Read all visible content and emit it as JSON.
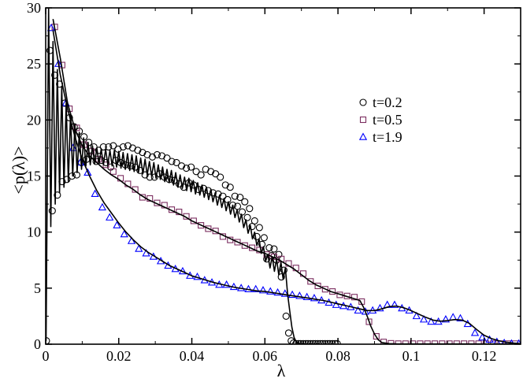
{
  "chart_data": {
    "type": "scatter",
    "xlabel": "λ",
    "ylabel": "<p(λ)>",
    "xlim": [
      0,
      0.13
    ],
    "ylim": [
      0,
      30
    ],
    "x_ticks": [
      0,
      0.02,
      0.04,
      0.06,
      0.08,
      0.1,
      0.12
    ],
    "x_tick_labels": [
      "0",
      "0.02",
      "0.04",
      "0.06",
      "0.08",
      "0.1",
      "0.12"
    ],
    "y_ticks": [
      0,
      5,
      10,
      15,
      20,
      25,
      30
    ],
    "y_tick_labels": [
      "0",
      "5",
      "10",
      "15",
      "20",
      "25",
      "30"
    ],
    "grid": false,
    "legend_position": "top-right",
    "series": [
      {
        "name": "t=0.2",
        "marker": "circle",
        "color": "#000000",
        "x": [
          0.0002,
          0.0012,
          0.0018,
          0.0025,
          0.0032,
          0.0038,
          0.0045,
          0.0052,
          0.0058,
          0.0065,
          0.0072,
          0.0078,
          0.0085,
          0.0092,
          0.0098,
          0.0105,
          0.0112,
          0.0118,
          0.0125,
          0.0132,
          0.0138,
          0.0145,
          0.0152,
          0.0158,
          0.0165,
          0.0172,
          0.0178,
          0.0185,
          0.0192,
          0.0198,
          0.0205,
          0.0212,
          0.0218,
          0.0225,
          0.0232,
          0.0238,
          0.0245,
          0.0252,
          0.0258,
          0.0265,
          0.0272,
          0.0278,
          0.0285,
          0.0292,
          0.0298,
          0.0305,
          0.0312,
          0.0318,
          0.0325,
          0.0332,
          0.0338,
          0.0345,
          0.0352,
          0.0358,
          0.0365,
          0.0372,
          0.0378,
          0.0385,
          0.0392,
          0.0398,
          0.0405,
          0.0412,
          0.0418,
          0.0425,
          0.0432,
          0.0438,
          0.0445,
          0.0452,
          0.0458,
          0.0465,
          0.0472,
          0.0478,
          0.0485,
          0.0492,
          0.0498,
          0.0505,
          0.0512,
          0.0518,
          0.0525,
          0.0532,
          0.0538,
          0.0545,
          0.0552,
          0.0558,
          0.0565,
          0.0572,
          0.0578,
          0.0585,
          0.0592,
          0.0598,
          0.0605,
          0.0612,
          0.0618,
          0.0625,
          0.0632,
          0.0638,
          0.0645,
          0.0652,
          0.0658,
          0.0665,
          0.0672,
          0.0678,
          0.0685,
          0.0692,
          0.0698,
          0.0705,
          0.0712,
          0.0718,
          0.0725,
          0.0732,
          0.0738,
          0.0745,
          0.0752,
          0.0758,
          0.0765,
          0.0772,
          0.0778,
          0.0785,
          0.0792,
          0.0798
        ],
        "y": [
          0.3,
          26.2,
          11.9,
          24.0,
          13.3,
          23.2,
          14.5,
          21.5,
          14.7,
          20.2,
          15.0,
          19.4,
          15.1,
          19.0,
          16.2,
          18.5,
          16.5,
          18.0,
          16.8,
          17.6,
          16.3,
          17.3,
          16.4,
          17.6,
          16.2,
          17.6,
          15.8,
          17.7,
          16.4,
          17.4,
          16.2,
          17.6,
          16.0,
          17.7,
          15.9,
          17.5,
          15.8,
          17.3,
          15.5,
          17.1,
          15.1,
          16.9,
          14.9,
          16.7,
          14.9,
          16.9,
          15.2,
          16.8,
          14.9,
          16.6,
          14.7,
          16.3,
          14.6,
          16.2,
          14.3,
          15.9,
          14.0,
          15.7,
          14.4,
          15.8,
          14.2,
          15.4,
          13.8,
          15.1,
          13.9,
          15.6,
          13.7,
          15.4,
          13.5,
          15.2,
          13.4,
          14.9,
          13.2,
          14.2,
          12.9,
          14.0,
          12.4,
          13.2,
          12.3,
          13.1,
          11.8,
          12.7,
          11.3,
          12.1,
          10.5,
          11.0,
          9.6,
          10.4,
          8.9,
          9.5,
          7.6,
          8.6,
          7.9,
          8.5,
          7.5,
          8.0,
          6.0,
          6.6,
          2.5,
          1.0,
          0.3,
          0.1,
          0.05,
          0.05,
          0.05,
          0.05,
          0.05,
          0.05,
          0.05,
          0.05,
          0.05,
          0.05,
          0.05,
          0.05,
          0.05,
          0.05,
          0.05,
          0.05,
          0.05,
          0.05
        ],
        "fit_x": [
          0.0001,
          0.0008,
          0.0014,
          0.002,
          0.0026,
          0.0032,
          0.0038,
          0.0044,
          0.005,
          0.0056,
          0.0062,
          0.0068,
          0.0074,
          0.008,
          0.0086,
          0.0092,
          0.0098,
          0.0104,
          0.011,
          0.0116,
          0.0122,
          0.0128,
          0.0134,
          0.014,
          0.0146,
          0.0152,
          0.0158,
          0.0164,
          0.017,
          0.0176,
          0.0182,
          0.0188,
          0.0194,
          0.02,
          0.0206,
          0.0212,
          0.0218,
          0.0224,
          0.023,
          0.0236,
          0.0242,
          0.0248,
          0.0254,
          0.026,
          0.0266,
          0.0272,
          0.0278,
          0.0284,
          0.029,
          0.0296,
          0.0302,
          0.0308,
          0.0314,
          0.032,
          0.0326,
          0.0332,
          0.0338,
          0.0344,
          0.035,
          0.0356,
          0.0362,
          0.0368,
          0.0374,
          0.038,
          0.0386,
          0.0392,
          0.0398,
          0.0404,
          0.041,
          0.0416,
          0.0422,
          0.0428,
          0.0434,
          0.044,
          0.0446,
          0.0452,
          0.0458,
          0.0464,
          0.047,
          0.0476,
          0.0482,
          0.0488,
          0.0494,
          0.05,
          0.0506,
          0.0512,
          0.0518,
          0.0524,
          0.053,
          0.0536,
          0.0542,
          0.0548,
          0.0554,
          0.056,
          0.0566,
          0.0572,
          0.0578,
          0.0584,
          0.059,
          0.0596,
          0.0602,
          0.0608,
          0.0614,
          0.062,
          0.0626,
          0.0632,
          0.0638,
          0.0644,
          0.065,
          0.0656,
          0.0662,
          0.0668,
          0.0674,
          0.068,
          0.0686,
          0.0692,
          0.0698,
          0.0704,
          0.071,
          0.0716,
          0.0722,
          0.0728,
          0.0734,
          0.074,
          0.075,
          0.08
        ],
        "fit_y": [
          0.3,
          30.0,
          10.5,
          27.0,
          12.5,
          24.5,
          13.5,
          23.0,
          14.0,
          21.5,
          14.5,
          20.5,
          15.0,
          19.6,
          15.3,
          18.9,
          15.6,
          18.4,
          15.9,
          18.0,
          16.0,
          17.7,
          16.1,
          17.5,
          16.1,
          17.4,
          16.0,
          17.4,
          16.0,
          17.3,
          15.9,
          17.3,
          15.8,
          17.2,
          15.7,
          17.1,
          15.6,
          17.0,
          15.5,
          16.9,
          15.4,
          16.8,
          15.3,
          16.6,
          15.2,
          16.5,
          15.1,
          16.3,
          15.0,
          16.2,
          14.8,
          16.0,
          14.7,
          15.8,
          14.5,
          15.6,
          14.4,
          15.5,
          14.2,
          15.3,
          14.0,
          15.1,
          13.9,
          14.9,
          13.7,
          14.8,
          13.6,
          14.6,
          13.4,
          14.4,
          13.3,
          14.2,
          13.1,
          14.0,
          12.9,
          13.8,
          12.7,
          13.5,
          12.4,
          13.3,
          12.2,
          13.0,
          11.9,
          12.7,
          11.6,
          12.4,
          11.3,
          12.0,
          10.9,
          11.6,
          10.4,
          11.1,
          9.9,
          10.6,
          9.4,
          10.0,
          8.8,
          9.4,
          8.1,
          8.7,
          7.4,
          8.0,
          6.8,
          7.8,
          6.5,
          7.6,
          6.2,
          7.3,
          5.8,
          6.8,
          4.5,
          3.0,
          1.5,
          0.6,
          0.2,
          0.08,
          0.04,
          0.03,
          0.02,
          0.02,
          0.02,
          0.02,
          0.02,
          0.02,
          0.02
        ]
      },
      {
        "name": "t=0.5",
        "marker": "square",
        "color": "#7b2d5f",
        "x": [
          0.0025,
          0.0045,
          0.0065,
          0.0085,
          0.0105,
          0.0125,
          0.0145,
          0.0165,
          0.0185,
          0.0205,
          0.0225,
          0.0245,
          0.0265,
          0.0285,
          0.0305,
          0.0325,
          0.0345,
          0.0365,
          0.0385,
          0.0405,
          0.0425,
          0.0445,
          0.0465,
          0.0485,
          0.0505,
          0.0525,
          0.0545,
          0.0565,
          0.0585,
          0.0605,
          0.0625,
          0.0645,
          0.0665,
          0.0685,
          0.0705,
          0.0725,
          0.0745,
          0.0765,
          0.0785,
          0.0805,
          0.0825,
          0.0845,
          0.0865,
          0.0885,
          0.0905,
          0.0925,
          0.0945,
          0.0965,
          0.0985,
          0.1005,
          0.1025,
          0.1045,
          0.1065,
          0.1085,
          0.1105,
          0.1125,
          0.1145,
          0.1165,
          0.1185,
          0.1205,
          0.1225,
          0.1245,
          0.1265,
          0.1285
        ],
        "y": [
          28.3,
          24.9,
          21.0,
          19.3,
          17.8,
          17.2,
          16.5,
          16.0,
          15.4,
          14.8,
          14.3,
          13.8,
          13.1,
          13.0,
          12.6,
          12.4,
          12.0,
          11.8,
          11.4,
          11.0,
          10.6,
          10.3,
          10.1,
          9.6,
          9.3,
          9.1,
          8.8,
          8.6,
          8.4,
          8.0,
          7.8,
          7.6,
          7.2,
          6.8,
          6.3,
          5.6,
          5.2,
          4.9,
          4.7,
          4.4,
          4.3,
          4.2,
          3.8,
          2.0,
          0.7,
          0.2,
          0.08,
          0.05,
          0.05,
          0.05,
          0.05,
          0.05,
          0.05,
          0.05,
          0.05,
          0.05,
          0.05,
          0.05,
          0.05,
          0.05,
          0.05,
          0.05,
          0.05,
          0.05
        ],
        "fit_x": [
          0.002,
          0.004,
          0.006,
          0.008,
          0.01,
          0.012,
          0.014,
          0.016,
          0.018,
          0.02,
          0.022,
          0.024,
          0.026,
          0.028,
          0.03,
          0.032,
          0.034,
          0.036,
          0.038,
          0.04,
          0.042,
          0.044,
          0.046,
          0.048,
          0.05,
          0.052,
          0.054,
          0.056,
          0.058,
          0.06,
          0.062,
          0.064,
          0.066,
          0.068,
          0.07,
          0.072,
          0.074,
          0.076,
          0.078,
          0.08,
          0.082,
          0.084,
          0.086,
          0.087,
          0.088,
          0.089,
          0.09,
          0.091,
          0.092,
          0.094,
          0.096,
          0.1,
          0.11,
          0.12,
          0.13
        ],
        "fit_y": [
          29.0,
          25.5,
          21.5,
          19.2,
          17.7,
          16.8,
          16.2,
          15.6,
          15.1,
          14.7,
          14.2,
          13.8,
          13.3,
          12.9,
          12.6,
          12.3,
          12.0,
          11.7,
          11.4,
          11.0,
          10.7,
          10.4,
          10.1,
          9.8,
          9.5,
          9.2,
          8.9,
          8.6,
          8.3,
          8.1,
          7.8,
          7.5,
          7.1,
          6.7,
          6.2,
          5.7,
          5.3,
          5.0,
          4.7,
          4.5,
          4.3,
          4.1,
          3.9,
          3.3,
          2.5,
          1.6,
          0.9,
          0.4,
          0.15,
          0.05,
          0.03,
          0.02,
          0.02,
          0.02,
          0.02
        ]
      },
      {
        "name": "t=1.9",
        "marker": "triangle",
        "color": "#0000ff",
        "x": [
          0.0015,
          0.0035,
          0.0055,
          0.0075,
          0.0095,
          0.0115,
          0.0135,
          0.0155,
          0.0175,
          0.0195,
          0.0215,
          0.0235,
          0.0255,
          0.0275,
          0.0295,
          0.0315,
          0.0335,
          0.0355,
          0.0375,
          0.0395,
          0.0415,
          0.0435,
          0.0455,
          0.0475,
          0.0495,
          0.0515,
          0.0535,
          0.0555,
          0.0575,
          0.0595,
          0.0615,
          0.0635,
          0.0655,
          0.0675,
          0.0695,
          0.0715,
          0.0735,
          0.0755,
          0.0775,
          0.0795,
          0.0815,
          0.0835,
          0.0855,
          0.0875,
          0.0895,
          0.0915,
          0.0935,
          0.0955,
          0.0975,
          0.0995,
          0.1015,
          0.1035,
          0.1055,
          0.1075,
          0.1095,
          0.1115,
          0.1135,
          0.1155,
          0.1175,
          0.1195,
          0.1215,
          0.1235,
          0.1255,
          0.1275,
          0.1295
        ],
        "y": [
          28.2,
          25.0,
          21.5,
          17.5,
          16.2,
          15.3,
          13.4,
          12.2,
          11.3,
          10.6,
          9.8,
          9.2,
          8.5,
          8.1,
          7.8,
          7.4,
          7.0,
          6.7,
          6.5,
          6.1,
          6.0,
          5.7,
          5.5,
          5.3,
          5.3,
          5.1,
          5.0,
          4.9,
          4.9,
          4.8,
          4.7,
          4.6,
          4.5,
          4.4,
          4.3,
          4.2,
          4.1,
          3.9,
          3.7,
          3.5,
          3.4,
          3.3,
          3.0,
          2.9,
          3.0,
          3.2,
          3.5,
          3.5,
          3.2,
          3.0,
          2.5,
          2.2,
          2.0,
          2.0,
          2.2,
          2.4,
          2.3,
          1.8,
          1.0,
          0.6,
          0.4,
          0.2,
          0.1,
          0.05,
          0.05
        ],
        "fit_x": [
          0.002,
          0.004,
          0.006,
          0.008,
          0.01,
          0.012,
          0.014,
          0.016,
          0.018,
          0.02,
          0.022,
          0.024,
          0.026,
          0.028,
          0.03,
          0.032,
          0.034,
          0.036,
          0.038,
          0.04,
          0.042,
          0.044,
          0.046,
          0.048,
          0.05,
          0.052,
          0.054,
          0.056,
          0.058,
          0.06,
          0.062,
          0.064,
          0.066,
          0.068,
          0.07,
          0.072,
          0.074,
          0.076,
          0.078,
          0.08,
          0.082,
          0.084,
          0.086,
          0.088,
          0.09,
          0.092,
          0.094,
          0.096,
          0.098,
          0.1,
          0.102,
          0.104,
          0.106,
          0.108,
          0.11,
          0.112,
          0.114,
          0.116,
          0.118,
          0.12,
          0.122,
          0.124,
          0.126,
          0.128,
          0.13
        ],
        "fit_y": [
          28.0,
          24.0,
          21.0,
          18.5,
          16.5,
          15.0,
          13.7,
          12.6,
          11.7,
          10.8,
          10.0,
          9.3,
          8.7,
          8.2,
          7.8,
          7.4,
          7.0,
          6.7,
          6.4,
          6.1,
          5.9,
          5.7,
          5.5,
          5.35,
          5.2,
          5.05,
          4.95,
          4.85,
          4.75,
          4.7,
          4.6,
          4.5,
          4.4,
          4.3,
          4.2,
          4.1,
          4.0,
          3.9,
          3.75,
          3.6,
          3.45,
          3.3,
          3.15,
          3.0,
          3.0,
          3.15,
          3.35,
          3.4,
          3.25,
          3.0,
          2.7,
          2.4,
          2.15,
          2.05,
          2.1,
          2.2,
          2.15,
          1.85,
          1.3,
          0.8,
          0.5,
          0.3,
          0.18,
          0.1,
          0.05
        ]
      }
    ]
  }
}
